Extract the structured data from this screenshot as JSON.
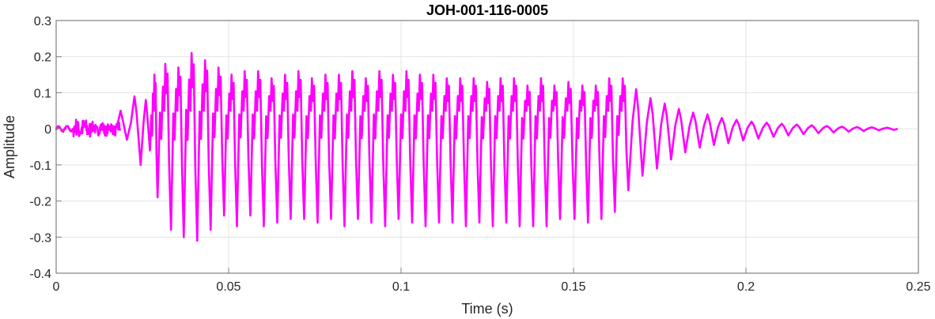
{
  "chart_data": {
    "type": "line",
    "title": "JOH-001-116-0005",
    "xlabel": "Time (s)",
    "ylabel": "Amplitude",
    "xlim": [
      0,
      0.25
    ],
    "ylim": [
      -0.4,
      0.3
    ],
    "xticks": [
      0,
      0.05,
      0.1,
      0.15,
      0.2,
      0.25
    ],
    "xtick_labels": [
      "0",
      "0.05",
      "0.1",
      "0.15",
      "0.2",
      "0.25"
    ],
    "yticks": [
      0.3,
      0.2,
      0.1,
      0,
      -0.1,
      -0.2,
      -0.3,
      -0.4
    ],
    "ytick_labels": [
      "0.3",
      "0.2",
      "0.1",
      "0",
      "-0.1",
      "-0.2",
      "-0.3",
      "-0.4"
    ],
    "grid": true,
    "color": "#ff00ff",
    "signal_start": 0,
    "signal_end": 0.244,
    "cycles_columns": [
      "trough_time_s",
      "preceding_peak",
      "trough"
    ],
    "cycles": [
      [
        0.0205,
        0.05,
        -0.03
      ],
      [
        0.0245,
        0.09,
        -0.1
      ],
      [
        0.0272,
        0.08,
        -0.06
      ],
      [
        0.0294,
        0.15,
        -0.19
      ],
      [
        0.0333,
        0.18,
        -0.28
      ],
      [
        0.037,
        0.17,
        -0.3
      ],
      [
        0.0409,
        0.21,
        -0.31
      ],
      [
        0.0448,
        0.19,
        -0.28
      ],
      [
        0.0487,
        0.17,
        -0.24
      ],
      [
        0.0524,
        0.15,
        -0.27
      ],
      [
        0.0563,
        0.16,
        -0.24
      ],
      [
        0.0602,
        0.16,
        -0.27
      ],
      [
        0.0641,
        0.14,
        -0.26
      ],
      [
        0.068,
        0.15,
        -0.25
      ],
      [
        0.0719,
        0.16,
        -0.25
      ],
      [
        0.0758,
        0.14,
        -0.26
      ],
      [
        0.0797,
        0.15,
        -0.25
      ],
      [
        0.0836,
        0.15,
        -0.27
      ],
      [
        0.0875,
        0.16,
        -0.25
      ],
      [
        0.0914,
        0.14,
        -0.26
      ],
      [
        0.0954,
        0.16,
        -0.27
      ],
      [
        0.0993,
        0.15,
        -0.25
      ],
      [
        0.1032,
        0.16,
        -0.26
      ],
      [
        0.1071,
        0.15,
        -0.27
      ],
      [
        0.111,
        0.15,
        -0.26
      ],
      [
        0.1149,
        0.14,
        -0.26
      ],
      [
        0.1188,
        0.14,
        -0.27
      ],
      [
        0.1227,
        0.14,
        -0.26
      ],
      [
        0.1266,
        0.13,
        -0.27
      ],
      [
        0.1305,
        0.14,
        -0.26
      ],
      [
        0.1344,
        0.14,
        -0.27
      ],
      [
        0.1383,
        0.12,
        -0.27
      ],
      [
        0.1422,
        0.14,
        -0.27
      ],
      [
        0.1461,
        0.12,
        -0.25
      ],
      [
        0.1503,
        0.13,
        -0.25
      ],
      [
        0.1542,
        0.12,
        -0.26
      ],
      [
        0.1581,
        0.12,
        -0.25
      ],
      [
        0.162,
        0.14,
        -0.23
      ],
      [
        0.1659,
        0.14,
        -0.17
      ],
      [
        0.17,
        0.11,
        -0.13
      ],
      [
        0.1742,
        0.085,
        -0.11
      ],
      [
        0.1783,
        0.07,
        -0.085
      ],
      [
        0.1824,
        0.055,
        -0.065
      ],
      [
        0.1866,
        0.045,
        -0.052
      ],
      [
        0.1907,
        0.04,
        -0.045
      ],
      [
        0.1949,
        0.03,
        -0.04
      ],
      [
        0.1992,
        0.025,
        -0.032
      ],
      [
        0.2036,
        0.02,
        -0.027
      ],
      [
        0.208,
        0.017,
        -0.022
      ],
      [
        0.2123,
        0.014,
        -0.018
      ],
      [
        0.2167,
        0.012,
        -0.015
      ],
      [
        0.221,
        0.01,
        -0.012
      ],
      [
        0.2254,
        0.008,
        -0.01
      ],
      [
        0.2298,
        0.006,
        -0.008
      ],
      [
        0.2341,
        0.005,
        -0.006
      ],
      [
        0.2385,
        0.004,
        -0.004
      ],
      [
        0.2429,
        0.003,
        -0.003
      ]
    ]
  }
}
